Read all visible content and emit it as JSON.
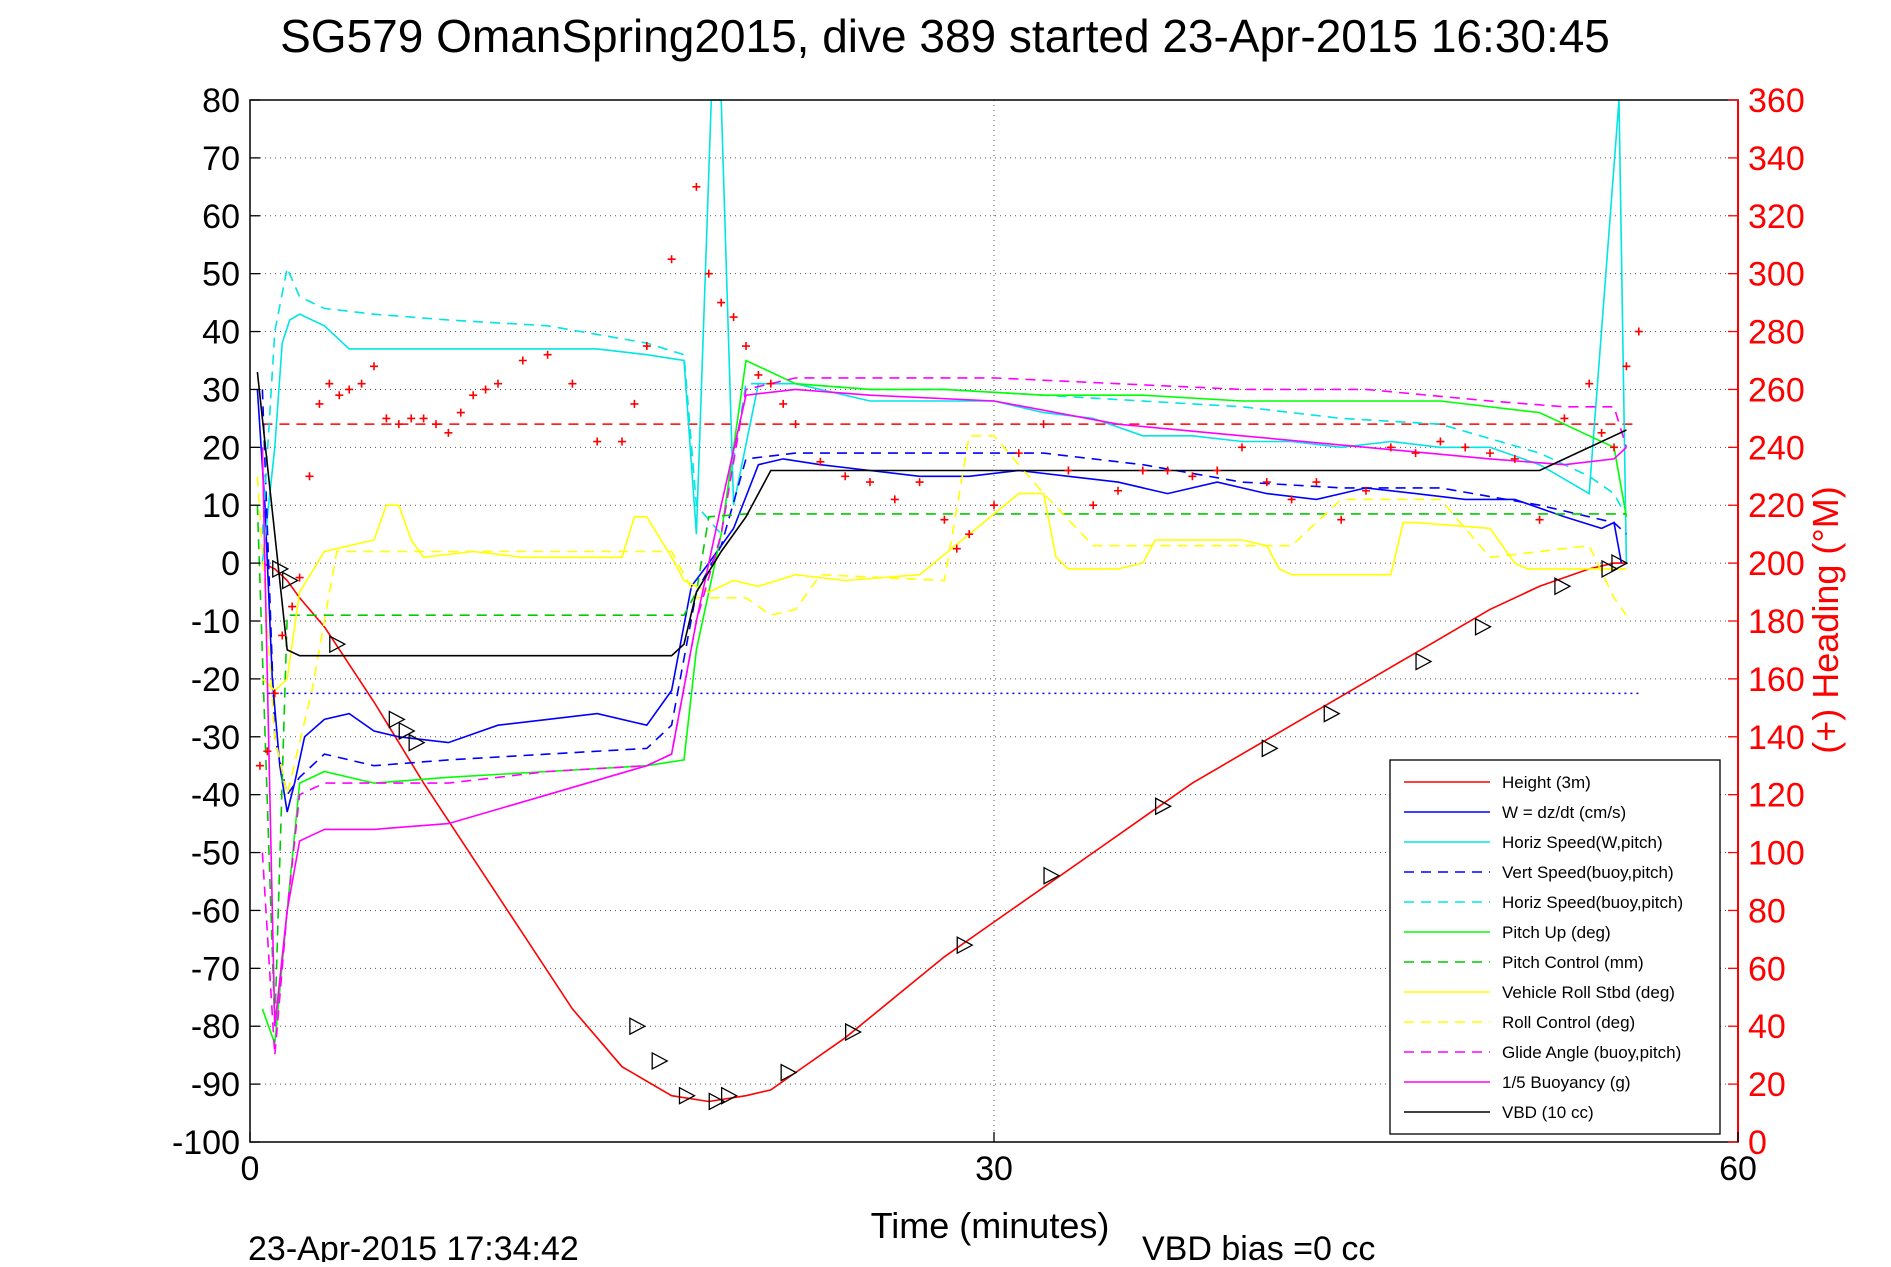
{
  "chart_data": {
    "type": "line",
    "title": "SG579 OmanSpring2015, dive 389 started 23-Apr-2015 16:30:45",
    "xlabel": "Time (minutes)",
    "ylabel_right": "(+) Heading (°M)",
    "footer_left": "23-Apr-2015 17:34:42",
    "footer_right": "VBD bias =0 cc",
    "xlim": [
      0,
      60
    ],
    "ylim": [
      -100,
      80
    ],
    "ylim_right": [
      0,
      360
    ],
    "x_ticks": [
      0,
      30,
      60
    ],
    "y_ticks": [
      80,
      70,
      60,
      50,
      40,
      30,
      20,
      10,
      0,
      -10,
      -20,
      -30,
      -40,
      -50,
      -60,
      -70,
      -80,
      -90,
      -100
    ],
    "y_ticks_right": [
      360,
      340,
      320,
      300,
      280,
      260,
      240,
      220,
      200,
      180,
      160,
      140,
      120,
      100,
      80,
      60,
      40,
      20,
      0
    ],
    "x_tick_labels": [
      "0",
      "30",
      "60"
    ],
    "y_tick_labels": [
      "80",
      "70",
      "60",
      "50",
      "40",
      "30",
      "20",
      "10",
      "0",
      "-10",
      "-20",
      "-30",
      "-40",
      "-50",
      "-60",
      "-70",
      "-80",
      "-90",
      "-100"
    ],
    "y_tick_labels_right": [
      "360",
      "340",
      "320",
      "300",
      "280",
      "260",
      "240",
      "220",
      "200",
      "180",
      "160",
      "140",
      "120",
      "100",
      "80",
      "60",
      "40",
      "20",
      "0"
    ],
    "grid": "dotted at x=30 and every y tick",
    "legend_position": "bottom-right",
    "colors": {
      "axis_left": "#000000",
      "axis_right": "#ff0000",
      "heading_markers": "#ff0000",
      "depth_markers": "#000000"
    },
    "legend": [
      {
        "label": "Height (3m)",
        "color": "#ff0000",
        "dash": "solid"
      },
      {
        "label": "W = dz/dt (cm/s)",
        "color": "#0000ff",
        "dash": "solid"
      },
      {
        "label": "Horiz Speed(W,pitch)",
        "color": "#00e5e5",
        "dash": "solid"
      },
      {
        "label": "Vert Speed(buoy,pitch)",
        "color": "#0000ff",
        "dash": "dashed"
      },
      {
        "label": "Horiz Speed(buoy,pitch)",
        "color": "#00e5e5",
        "dash": "dashed"
      },
      {
        "label": "Pitch Up (deg)",
        "color": "#00ff00",
        "dash": "solid"
      },
      {
        "label": "Pitch Control (mm)",
        "color": "#00cc00",
        "dash": "dashed"
      },
      {
        "label": "Vehicle Roll Stbd (deg)",
        "color": "#ffff00",
        "dash": "solid"
      },
      {
        "label": "Roll Control (deg)",
        "color": "#ffff00",
        "dash": "dashed"
      },
      {
        "label": "Glide Angle (buoy,pitch)",
        "color": "#ff00ff",
        "dash": "dashed"
      },
      {
        "label": "1/5 Buoyancy (g)",
        "color": "#ff00ff",
        "dash": "solid"
      },
      {
        "label": "VBD (10 cc)",
        "color": "#000000",
        "dash": "solid"
      }
    ],
    "series": [
      {
        "name": "Height (3m)",
        "color": "#ff0000",
        "dash": "solid",
        "x": [
          0.5,
          1,
          1.5,
          2,
          3,
          5,
          7,
          9,
          11,
          13,
          15,
          17,
          18.5,
          20,
          21,
          22,
          24,
          26,
          28,
          30,
          32,
          34,
          36,
          38,
          40,
          42,
          44,
          46,
          48,
          50,
          52,
          54,
          55,
          55.5
        ],
        "y": [
          0,
          -1,
          -3,
          -6,
          -11,
          -24,
          -38,
          -51,
          -64,
          -77,
          -87,
          -92,
          -93,
          -92,
          -91,
          -88,
          -82,
          -75,
          -68,
          -62,
          -56,
          -50,
          -44,
          -38,
          -33,
          -28,
          -23,
          -18,
          -13,
          -8,
          -4,
          -1,
          0,
          0
        ]
      },
      {
        "name": "W = dz/dt (cm/s)",
        "color": "#0000ff",
        "dash": "solid",
        "x": [
          0.3,
          0.6,
          0.9,
          1.2,
          1.5,
          1.8,
          2.2,
          3,
          4,
          5,
          6,
          8,
          10,
          12,
          14,
          16,
          17,
          17.8,
          18.5,
          19.5,
          20.5,
          21.5,
          23,
          25,
          27,
          29,
          31,
          33,
          35,
          37,
          39,
          41,
          43,
          45,
          47,
          49,
          51,
          53,
          54.5,
          55,
          55.3
        ],
        "y": [
          30,
          10,
          -20,
          -35,
          -43,
          -38,
          -30,
          -27,
          -26,
          -29,
          -30,
          -31,
          -28,
          -27,
          -26,
          -28,
          -22,
          -4,
          0,
          6,
          17,
          18,
          17,
          16,
          15,
          15,
          16,
          15,
          14,
          12,
          14,
          12,
          11,
          13,
          12,
          11,
          11,
          8,
          6,
          7,
          0
        ]
      },
      {
        "name": "Horiz Speed(W,pitch)",
        "color": "#00e5e5",
        "dash": "solid",
        "x": [
          0.5,
          1,
          1.3,
          1.6,
          2,
          3,
          4,
          6,
          8,
          10,
          12,
          14,
          16,
          17.5,
          18,
          18.6,
          19,
          19.5,
          20.5,
          22,
          25,
          28,
          30,
          32,
          34,
          36,
          38,
          40,
          42,
          44,
          46,
          48,
          50,
          52,
          54,
          55.2,
          55.5
        ],
        "y": [
          0,
          20,
          38,
          42,
          43,
          41,
          37,
          37,
          37,
          37,
          37,
          37,
          36,
          35,
          5,
          90,
          90,
          10,
          31,
          31,
          28,
          28,
          28,
          26,
          25,
          22,
          22,
          21,
          21,
          20,
          21,
          20,
          20,
          17,
          12,
          80,
          0
        ]
      },
      {
        "name": "Vert Speed(buoy,pitch)",
        "color": "#0000ff",
        "dash": "dashed",
        "x": [
          0.5,
          1,
          1.5,
          2,
          3,
          5,
          8,
          12,
          16,
          17,
          18,
          19,
          20,
          22,
          25,
          28,
          32,
          36,
          40,
          44,
          48,
          52,
          54,
          55,
          55.5
        ],
        "y": [
          30,
          -30,
          -40,
          -37,
          -33,
          -35,
          -34,
          -33,
          -32,
          -28,
          -5,
          3,
          18,
          19,
          19,
          19,
          19,
          17,
          14,
          13,
          13,
          10,
          8,
          7,
          5
        ]
      },
      {
        "name": "Horiz Speed(buoy,pitch)",
        "color": "#00e5e5",
        "dash": "dashed",
        "x": [
          0.5,
          1,
          1.5,
          2,
          3,
          5,
          8,
          12,
          16,
          17.5,
          18,
          19,
          20,
          22,
          25,
          28,
          32,
          36,
          40,
          44,
          48,
          52,
          54,
          55,
          55.5
        ],
        "y": [
          5,
          40,
          51,
          46,
          44,
          43,
          42,
          41,
          38,
          36,
          10,
          5,
          31,
          31,
          30,
          30,
          29,
          28,
          27,
          25,
          24,
          19,
          15,
          12,
          8
        ]
      },
      {
        "name": "Pitch Up (deg)",
        "color": "#00ff00",
        "dash": "solid",
        "x": [
          0.5,
          1,
          1.5,
          2,
          3,
          5,
          8,
          12,
          16,
          17.5,
          18,
          19,
          20,
          22,
          25,
          28,
          32,
          36,
          40,
          44,
          48,
          52,
          54,
          55,
          55.5
        ],
        "y": [
          -77,
          -83,
          -60,
          -38,
          -36,
          -38,
          -37,
          -36,
          -35,
          -34,
          -15,
          5,
          35,
          31,
          30,
          30,
          29,
          29,
          28,
          28,
          28,
          26,
          22,
          20,
          8
        ]
      },
      {
        "name": "Pitch Control (mm)",
        "color": "#00cc00",
        "dash": "dashed",
        "x": [
          0.3,
          1,
          1.5,
          3,
          8,
          12,
          17.5,
          18,
          18.5,
          20,
          30,
          40,
          50,
          55.5
        ],
        "y": [
          10,
          -80,
          -9,
          -9,
          -9,
          -9,
          -9,
          -5,
          8,
          8.5,
          8.5,
          8.5,
          8.5,
          8.5
        ]
      },
      {
        "name": "Vehicle Roll Stbd (deg)",
        "color": "#ffff00",
        "dash": "solid",
        "x": [
          0.5,
          1,
          1.5,
          2,
          3,
          4,
          5,
          5.5,
          6,
          6.5,
          7,
          9,
          11,
          13,
          15,
          15.5,
          16,
          17,
          17.5,
          18.5,
          19.5,
          20.5,
          22,
          24,
          27,
          29,
          31,
          32,
          32.5,
          33,
          35,
          36,
          36.5,
          37,
          40,
          41,
          41.5,
          42,
          45,
          46,
          46.5,
          47,
          50,
          51,
          51.5,
          52,
          55,
          55.5
        ],
        "y": [
          -20,
          -22,
          -20,
          -5,
          2,
          3,
          4,
          10,
          10,
          4,
          1,
          2,
          1,
          1,
          1,
          8,
          8,
          1,
          -3,
          -5,
          -3,
          -4,
          -2,
          -3,
          -2,
          5,
          12,
          12,
          1,
          -1,
          -1,
          0,
          4,
          4,
          4,
          3,
          -1,
          -2,
          -2,
          -2,
          7,
          7,
          6,
          0,
          -1,
          -1,
          -1,
          -1
        ]
      },
      {
        "name": "Roll Control (deg)",
        "color": "#ffff00",
        "dash": "dashed",
        "x": [
          0.3,
          1,
          1.5,
          2.5,
          3.5,
          5,
          6,
          7,
          10,
          15,
          16,
          17,
          18,
          20,
          21,
          22,
          23,
          28,
          29,
          30,
          32,
          34,
          36,
          38,
          40,
          42,
          44,
          46,
          48,
          50,
          52,
          54,
          55,
          55.5
        ],
        "y": [
          15,
          -30,
          -40,
          -22,
          2,
          2,
          2,
          2,
          2,
          2,
          2,
          2,
          -6,
          -6,
          -9,
          -8,
          -2,
          -3,
          22,
          22,
          12,
          3,
          3,
          3,
          3,
          3,
          11,
          11,
          11,
          1,
          2,
          3,
          -6,
          -9
        ]
      },
      {
        "name": "Glide Angle (buoy,pitch)",
        "color": "#ff00ff",
        "dash": "dashed",
        "x": [
          0.5,
          1,
          1.5,
          2,
          3,
          5,
          8,
          12,
          16,
          17,
          18,
          19,
          20,
          22,
          25,
          30,
          35,
          40,
          45,
          50,
          53,
          55,
          55.5
        ],
        "y": [
          -50,
          -85,
          -60,
          -40,
          -38,
          -38,
          -38,
          -36,
          -35,
          -33,
          -10,
          5,
          30,
          32,
          32,
          32,
          31,
          30,
          30,
          28,
          27,
          27,
          20
        ]
      },
      {
        "name": "1/5 Buoyancy (g)",
        "color": "#ff00ff",
        "dash": "solid",
        "x": [
          0.5,
          1,
          1.5,
          2,
          2.5,
          3,
          5,
          8,
          12,
          16,
          17,
          18,
          19,
          20,
          22,
          25,
          30,
          35,
          40,
          45,
          50,
          53,
          55,
          55.5
        ],
        "y": [
          20,
          -80,
          -60,
          -48,
          -47,
          -46,
          -46,
          -45,
          -40,
          -35,
          -33,
          -10,
          10,
          29,
          30,
          29,
          28,
          24,
          22,
          20,
          18,
          17,
          18,
          20
        ]
      },
      {
        "name": "VBD (10 cc)",
        "color": "#000000",
        "dash": "solid",
        "x": [
          0.3,
          1,
          1.5,
          2,
          8,
          17,
          17.5,
          18,
          19,
          20,
          21,
          22,
          30,
          40,
          50,
          52,
          53,
          55,
          55.5
        ],
        "y": [
          33,
          5,
          -15,
          -16,
          -16,
          -16,
          -14,
          -5,
          2,
          8,
          16,
          16,
          16,
          16,
          16,
          16,
          18,
          22,
          23
        ]
      }
    ],
    "depth_markers": {
      "x": [
        1.2,
        1.6,
        3.5,
        5.9,
        6.3,
        6.7,
        15.6,
        16.5,
        17.6,
        18.8,
        19.3,
        21.7,
        24.3,
        28.8,
        32.3,
        36.8,
        41.1,
        43.6,
        47.3,
        49.7,
        52.9,
        54.8,
        55.2
      ],
      "y": [
        -1,
        -3,
        -14,
        -27,
        -29,
        -31,
        -80,
        -86,
        -92,
        -93,
        -92,
        -88,
        -81,
        -66,
        -54,
        -42,
        -32,
        -26,
        -17,
        -11,
        -4,
        -1,
        0
      ]
    },
    "heading_markers": {
      "name": "(+) Heading (°M)",
      "x": [
        0.4,
        0.7,
        1,
        1.3,
        1.7,
        2,
        2.4,
        2.8,
        3.2,
        3.6,
        4,
        4.5,
        5,
        5.5,
        6,
        6.5,
        7,
        7.5,
        8,
        8.5,
        9,
        9.5,
        10,
        11,
        12,
        13,
        14,
        15,
        15.5,
        16,
        17,
        18,
        18.5,
        19,
        19.5,
        20,
        20.5,
        21,
        21.5,
        22,
        23,
        24,
        25,
        26,
        27,
        28,
        28.5,
        29,
        30,
        31,
        32,
        33,
        34,
        35,
        36,
        37,
        38,
        39,
        40,
        41,
        42,
        43,
        44,
        45,
        46,
        47,
        48,
        49,
        50,
        51,
        52,
        53,
        54,
        54.5,
        55,
        55.5,
        56
      ],
      "y": [
        130,
        135,
        155,
        175,
        185,
        195,
        230,
        255,
        262,
        258,
        260,
        262,
        268,
        250,
        248,
        250,
        250,
        248,
        245,
        252,
        258,
        260,
        262,
        270,
        272,
        262,
        242,
        242,
        255,
        275,
        305,
        330,
        300,
        290,
        285,
        275,
        265,
        262,
        255,
        248,
        235,
        230,
        228,
        222,
        228,
        215,
        205,
        210,
        220,
        238,
        248,
        232,
        220,
        225,
        232,
        232,
        230,
        232,
        240,
        228,
        222,
        228,
        215,
        225,
        240,
        238,
        242,
        240,
        238,
        236,
        215,
        250,
        262,
        245,
        240,
        268,
        280
      ]
    },
    "reference_lines": [
      {
        "axis": "right",
        "y": 248,
        "color": "#ff0000",
        "dash": "dashed",
        "x": [
          0.5,
          56
        ]
      },
      {
        "axis": "left",
        "y": -22.5,
        "color": "#0000ff",
        "dash": "dotted",
        "x": [
          0.5,
          56
        ]
      }
    ]
  }
}
